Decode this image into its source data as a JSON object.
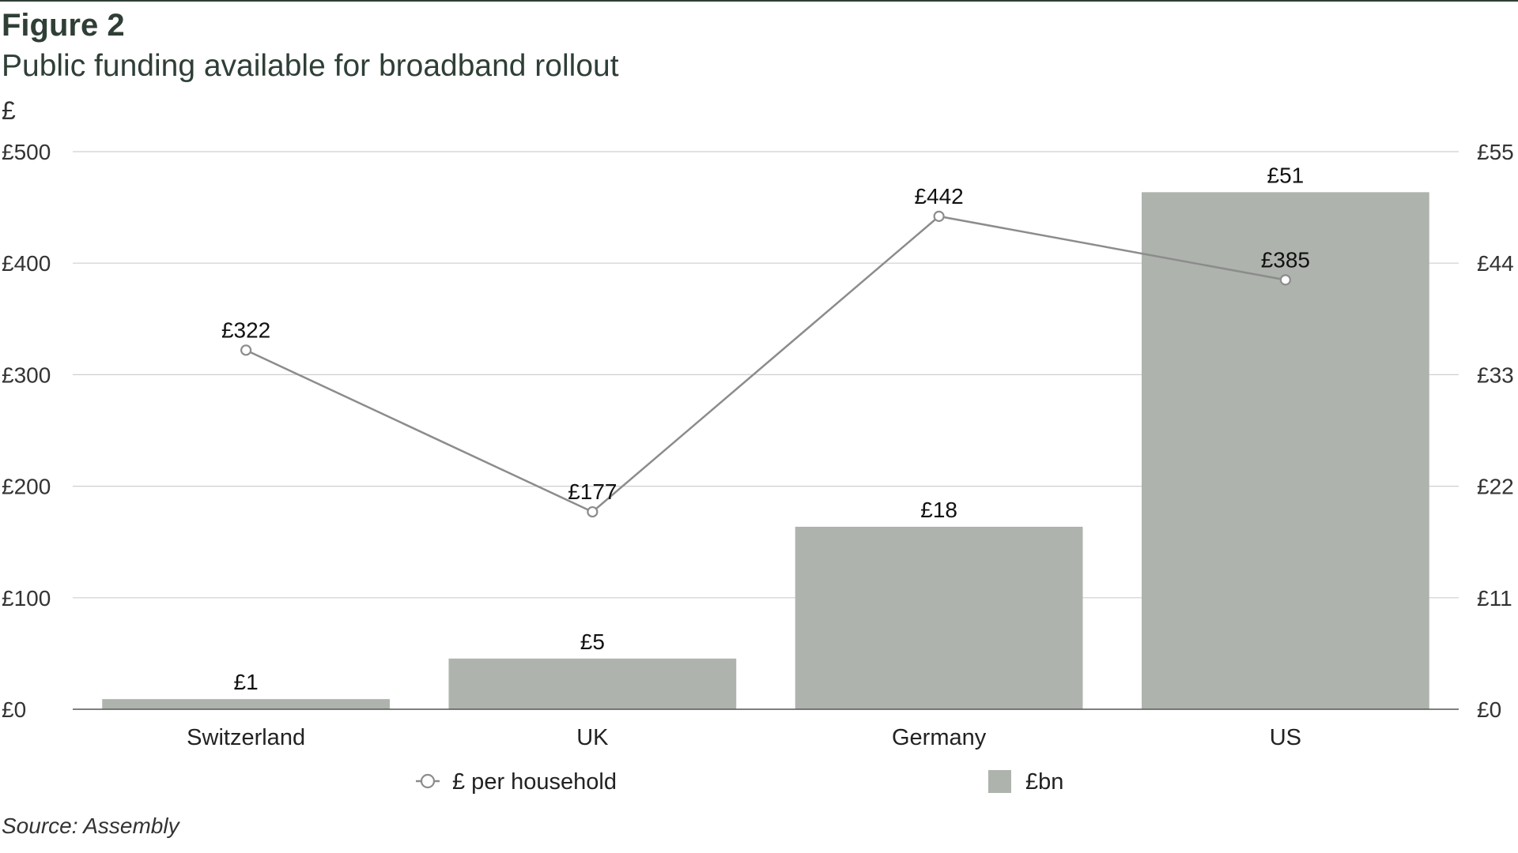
{
  "header": {
    "figure_label": "Figure 2",
    "title": "Public funding available for broadband rollout",
    "unit": "£"
  },
  "source": "Source: Assembly",
  "colors": {
    "bar": "#aeb3ad",
    "line": "#8c8c8c",
    "grid": "#cfcfcf",
    "axis": "#555555",
    "marker_fill": "#ffffff"
  },
  "chart_data": {
    "type": "bar",
    "title": "Public funding available for broadband rollout",
    "ylabel": "£",
    "categories": [
      "Switzerland",
      "UK",
      "Germany",
      "US"
    ],
    "y_left": {
      "ylim": [
        0,
        500
      ],
      "ticks": [
        "£0",
        "£100",
        "£200",
        "£300",
        "£400",
        "£500"
      ]
    },
    "y_right": {
      "ylim": [
        0,
        55
      ],
      "ticks": [
        "£0",
        "£11",
        "£22",
        "£33",
        "£44",
        "£55"
      ]
    },
    "grid": true,
    "legend_position": "bottom",
    "series": [
      {
        "name": "£bn",
        "type": "bar",
        "axis": "right",
        "values": [
          1,
          5,
          18,
          51
        ],
        "labels": [
          "£1",
          "£5",
          "£18",
          "£51"
        ]
      },
      {
        "name": "£ per household",
        "type": "line",
        "axis": "left",
        "values": [
          322,
          177,
          442,
          385
        ],
        "labels": [
          "£322",
          "£177",
          "£442",
          "£385"
        ]
      }
    ]
  }
}
